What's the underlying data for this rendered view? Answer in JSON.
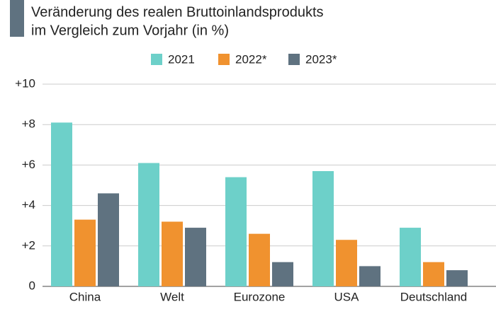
{
  "chart_data": {
    "type": "bar",
    "title": [
      "Veränderung des realen Bruttoinlandsprodukts",
      "im Vergleich zum Vorjahr (in %)"
    ],
    "categories": [
      "China",
      "Welt",
      "Eurozone",
      "USA",
      "Deutschland"
    ],
    "series": [
      {
        "name": "2021",
        "color": "#6dd0c9",
        "values": [
          8.1,
          6.1,
          5.4,
          5.7,
          2.9
        ]
      },
      {
        "name": "2022*",
        "color": "#f0922f",
        "values": [
          3.3,
          3.2,
          2.6,
          2.3,
          1.2
        ]
      },
      {
        "name": "2023*",
        "color": "#5f7280",
        "values": [
          4.6,
          2.9,
          1.2,
          1.0,
          0.8
        ]
      }
    ],
    "ylim": [
      0,
      10
    ],
    "yticks": [
      {
        "value": 0,
        "label": "0"
      },
      {
        "value": 2,
        "label": "+2"
      },
      {
        "value": 4,
        "label": "+4"
      },
      {
        "value": 6,
        "label": "+6"
      },
      {
        "value": 8,
        "label": "+8"
      },
      {
        "value": 10,
        "label": "+10"
      }
    ],
    "grid": true
  }
}
